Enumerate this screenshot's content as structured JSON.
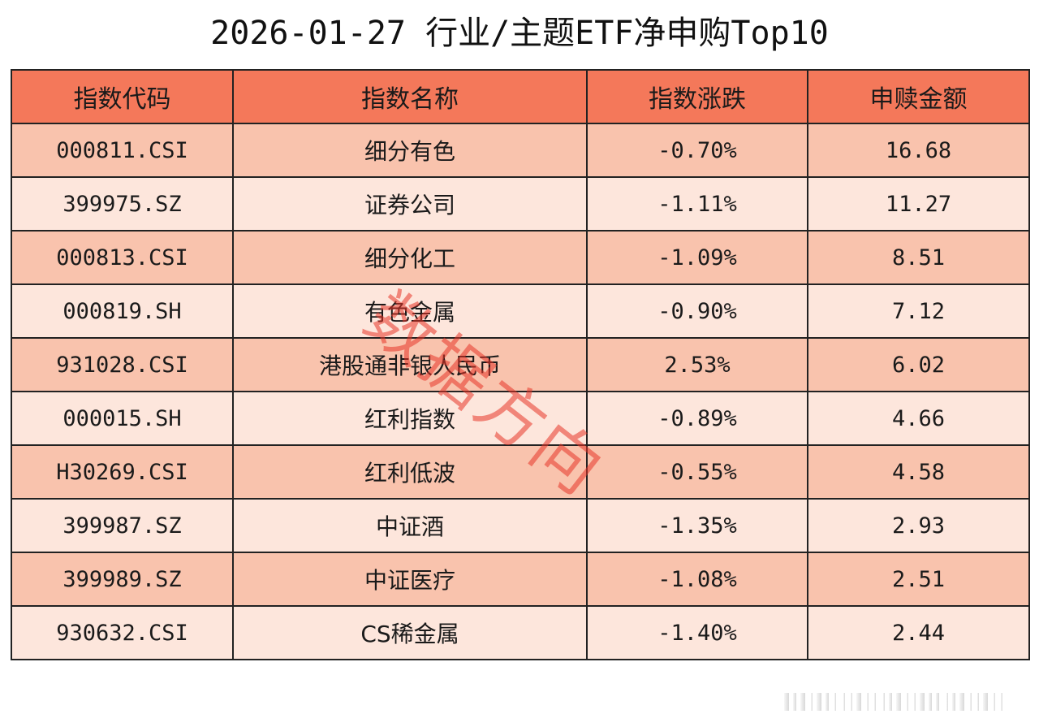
{
  "title": "2026-01-27 行业/主题ETF净申购Top10",
  "watermark": "数据方向",
  "chart_data": {
    "type": "table",
    "title": "2026-01-27 行业/主题ETF净申购Top10",
    "columns": [
      "指数代码",
      "指数名称",
      "指数涨跌",
      "申赎金额"
    ],
    "rows": [
      {
        "code": "000811.CSI",
        "name": "细分有色",
        "change": "-0.70%",
        "amount": "16.68"
      },
      {
        "code": "399975.SZ",
        "name": "证券公司",
        "change": "-1.11%",
        "amount": "11.27"
      },
      {
        "code": "000813.CSI",
        "name": "细分化工",
        "change": "-1.09%",
        "amount": "8.51"
      },
      {
        "code": "000819.SH",
        "name": "有色金属",
        "change": "-0.90%",
        "amount": "7.12"
      },
      {
        "code": "931028.CSI",
        "name": "港股通非银人民币",
        "change": "2.53%",
        "amount": "6.02"
      },
      {
        "code": "000015.SH",
        "name": "红利指数",
        "change": "-0.89%",
        "amount": "4.66"
      },
      {
        "code": "H30269.CSI",
        "name": "红利低波",
        "change": "-0.55%",
        "amount": "4.58"
      },
      {
        "code": "399987.SZ",
        "name": "中证酒",
        "change": "-1.35%",
        "amount": "2.93"
      },
      {
        "code": "399989.SZ",
        "name": "中证医疗",
        "change": "-1.08%",
        "amount": "2.51"
      },
      {
        "code": "930632.CSI",
        "name": "CS稀金属",
        "change": "-1.40%",
        "amount": "2.44"
      }
    ]
  },
  "colors": {
    "header_bg": "#f4785a",
    "row_odd_bg": "#f9c3ad",
    "row_even_bg": "#fde6dc",
    "watermark": "#e83428"
  }
}
